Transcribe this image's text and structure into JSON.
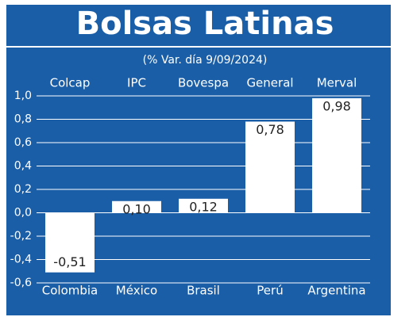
{
  "chart_data": {
    "type": "bar",
    "title": "Bolsas Latinas",
    "subtitle": "(% Var. día 9/09/2024)",
    "index_names": [
      "Colcap",
      "IPC",
      "Bovespa",
      "General",
      "Merval"
    ],
    "categories": [
      "Colombia",
      "México",
      "Brasil",
      "Perú",
      "Argentina"
    ],
    "values": [
      -0.51,
      0.1,
      0.12,
      0.78,
      0.98
    ],
    "value_labels": [
      "-0,51",
      "0,10",
      "0,12",
      "0,78",
      "0,98"
    ],
    "color": "#ffffff",
    "ylim": [
      -0.6,
      1.0
    ],
    "yticks": [
      {
        "value": -0.6,
        "label": "-0,6"
      },
      {
        "value": -0.4,
        "label": "-0,4"
      },
      {
        "value": -0.2,
        "label": "-0,2"
      },
      {
        "value": 0,
        "label": "0,0"
      },
      {
        "value": 0.2,
        "label": "0,2"
      },
      {
        "value": 0.4,
        "label": "0,4"
      },
      {
        "value": 0.6,
        "label": "0,6"
      },
      {
        "value": 0.8,
        "label": "0,8"
      },
      {
        "value": 1.0,
        "label": "1,0"
      }
    ],
    "grid": true
  }
}
